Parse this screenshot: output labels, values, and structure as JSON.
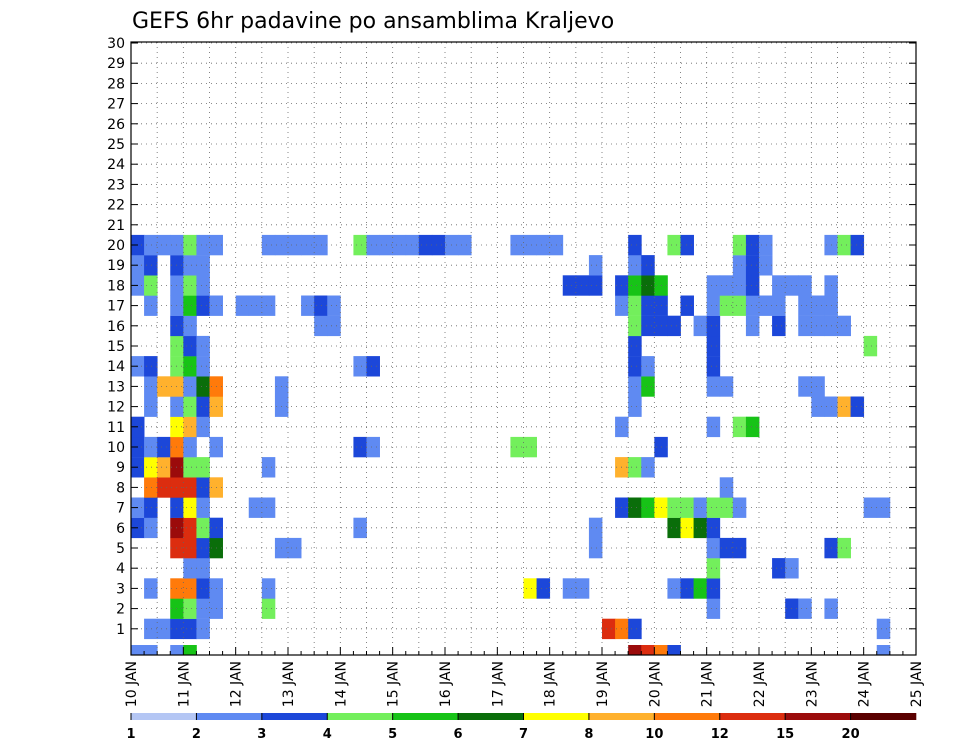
{
  "chart_data": {
    "type": "heatmap",
    "title": "GEFS 6hr padavine po ansamblima Kraljevo",
    "xlabel": "",
    "ylabel": "",
    "x_ticks": [
      "10 JAN",
      "11 JAN",
      "12 JAN",
      "13 JAN",
      "14 JAN",
      "15 JAN",
      "16 JAN",
      "17 JAN",
      "18 JAN",
      "19 JAN",
      "20 JAN",
      "21 JAN",
      "22 JAN",
      "23 JAN",
      "24 JAN",
      "25 JAN"
    ],
    "y_ticks": [
      "1",
      "2",
      "3",
      "4",
      "5",
      "6",
      "7",
      "8",
      "9",
      "10",
      "11",
      "12",
      "13",
      "14",
      "15",
      "16",
      "17",
      "18",
      "19",
      "20",
      "21",
      "22",
      "23",
      "24",
      "25",
      "26",
      "27",
      "28",
      "29",
      "30"
    ],
    "x_range": [
      0,
      60
    ],
    "y_range": [
      0,
      30
    ],
    "x_unit": "6-hour steps from 10 JAN 00Z",
    "grid": true,
    "colorbar": {
      "labels": [
        "1",
        "2",
        "3",
        "4",
        "5",
        "6",
        "7",
        "8",
        "10",
        "12",
        "15",
        "20"
      ],
      "colors": [
        "#b4c6f4",
        "#5f8af2",
        "#1c47d9",
        "#73ef5c",
        "#17c317",
        "#0a6e0a",
        "#ffff00",
        "#ffb12d",
        "#ff7a0a",
        "#dc2d0f",
        "#9b0b0b",
        "#5a0000"
      ]
    },
    "cells": [
      {
        "m": 0,
        "s": 1,
        "c": 1
      },
      {
        "m": 0,
        "s": 2,
        "c": 1
      },
      {
        "m": 0,
        "s": 3,
        "c": 2
      },
      {
        "m": 0,
        "s": 4,
        "c": 2
      },
      {
        "m": 0,
        "s": 5,
        "c": 1
      },
      {
        "m": 0,
        "s": 36,
        "c": 9
      },
      {
        "m": 0,
        "s": 37,
        "c": 8
      },
      {
        "m": 0,
        "s": 38,
        "c": 2
      },
      {
        "m": 0,
        "s": 57,
        "c": 1
      },
      {
        "m": 1,
        "s": 3,
        "c": 4
      },
      {
        "m": 1,
        "s": 4,
        "c": 3
      },
      {
        "m": 1,
        "s": 5,
        "c": 1
      },
      {
        "m": 1,
        "s": 6,
        "c": 1
      },
      {
        "m": 1,
        "s": 10,
        "c": 3
      },
      {
        "m": 1,
        "s": 44,
        "c": 1
      },
      {
        "m": 1,
        "s": 50,
        "c": 2
      },
      {
        "m": 1,
        "s": 51,
        "c": 1
      },
      {
        "m": 1,
        "s": 53,
        "c": 1
      },
      {
        "m": 2,
        "s": 1,
        "c": 1
      },
      {
        "m": 2,
        "s": 3,
        "c": 8
      },
      {
        "m": 2,
        "s": 4,
        "c": 8
      },
      {
        "m": 2,
        "s": 5,
        "c": 2
      },
      {
        "m": 2,
        "s": 6,
        "c": 1
      },
      {
        "m": 2,
        "s": 10,
        "c": 1
      },
      {
        "m": 2,
        "s": 30,
        "c": 6
      },
      {
        "m": 2,
        "s": 31,
        "c": 2
      },
      {
        "m": 2,
        "s": 33,
        "c": 1
      },
      {
        "m": 2,
        "s": 34,
        "c": 1
      },
      {
        "m": 2,
        "s": 41,
        "c": 1
      },
      {
        "m": 2,
        "s": 42,
        "c": 2
      },
      {
        "m": 2,
        "s": 43,
        "c": 4
      },
      {
        "m": 2,
        "s": 44,
        "c": 2
      },
      {
        "m": 3,
        "s": 4,
        "c": 1
      },
      {
        "m": 3,
        "s": 5,
        "c": 1
      },
      {
        "m": 3,
        "s": 44,
        "c": 3
      },
      {
        "m": 3,
        "s": 49,
        "c": 2
      },
      {
        "m": 3,
        "s": 50,
        "c": 1
      },
      {
        "m": 4,
        "s": 3,
        "c": 9
      },
      {
        "m": 4,
        "s": 4,
        "c": 9
      },
      {
        "m": 4,
        "s": 5,
        "c": 2
      },
      {
        "m": 4,
        "s": 6,
        "c": 5
      },
      {
        "m": 4,
        "s": 11,
        "c": 1
      },
      {
        "m": 4,
        "s": 12,
        "c": 1
      },
      {
        "m": 4,
        "s": 35,
        "c": 1
      },
      {
        "m": 4,
        "s": 44,
        "c": 1
      },
      {
        "m": 4,
        "s": 45,
        "c": 2
      },
      {
        "m": 4,
        "s": 46,
        "c": 2
      },
      {
        "m": 4,
        "s": 53,
        "c": 2
      },
      {
        "m": 4,
        "s": 54,
        "c": 3
      },
      {
        "m": 5,
        "s": 0,
        "c": 2
      },
      {
        "m": 5,
        "s": 1,
        "c": 1
      },
      {
        "m": 5,
        "s": 3,
        "c": 10
      },
      {
        "m": 5,
        "s": 4,
        "c": 9
      },
      {
        "m": 5,
        "s": 5,
        "c": 3
      },
      {
        "m": 5,
        "s": 6,
        "c": 2
      },
      {
        "m": 5,
        "s": 17,
        "c": 1
      },
      {
        "m": 5,
        "s": 35,
        "c": 1
      },
      {
        "m": 5,
        "s": 41,
        "c": 5
      },
      {
        "m": 5,
        "s": 42,
        "c": 6
      },
      {
        "m": 5,
        "s": 43,
        "c": 5
      },
      {
        "m": 5,
        "s": 44,
        "c": 2
      },
      {
        "m": 6,
        "s": 0,
        "c": 1
      },
      {
        "m": 6,
        "s": 1,
        "c": 2
      },
      {
        "m": 6,
        "s": 3,
        "c": 2
      },
      {
        "m": 6,
        "s": 4,
        "c": 6
      },
      {
        "m": 6,
        "s": 5,
        "c": 1
      },
      {
        "m": 6,
        "s": 9,
        "c": 1
      },
      {
        "m": 6,
        "s": 10,
        "c": 1
      },
      {
        "m": 6,
        "s": 37,
        "c": 2
      },
      {
        "m": 6,
        "s": 38,
        "c": 5
      },
      {
        "m": 6,
        "s": 39,
        "c": 4
      },
      {
        "m": 6,
        "s": 40,
        "c": 6
      },
      {
        "m": 6,
        "s": 41,
        "c": 3
      },
      {
        "m": 6,
        "s": 42,
        "c": 3
      },
      {
        "m": 6,
        "s": 43,
        "c": 1
      },
      {
        "m": 6,
        "s": 44,
        "c": 3
      },
      {
        "m": 6,
        "s": 45,
        "c": 3
      },
      {
        "m": 6,
        "s": 46,
        "c": 1
      },
      {
        "m": 6,
        "s": 56,
        "c": 1
      },
      {
        "m": 6,
        "s": 57,
        "c": 1
      },
      {
        "m": 7,
        "s": 1,
        "c": 8
      },
      {
        "m": 7,
        "s": 2,
        "c": 9
      },
      {
        "m": 7,
        "s": 3,
        "c": 9
      },
      {
        "m": 7,
        "s": 4,
        "c": 9
      },
      {
        "m": 7,
        "s": 5,
        "c": 2
      },
      {
        "m": 7,
        "s": 6,
        "c": 7
      },
      {
        "m": 7,
        "s": 45,
        "c": 1
      },
      {
        "m": 8,
        "s": 0,
        "c": 2
      },
      {
        "m": 8,
        "s": 1,
        "c": 6
      },
      {
        "m": 8,
        "s": 2,
        "c": 7
      },
      {
        "m": 8,
        "s": 3,
        "c": 10
      },
      {
        "m": 8,
        "s": 4,
        "c": 3
      },
      {
        "m": 8,
        "s": 5,
        "c": 3
      },
      {
        "m": 8,
        "s": 10,
        "c": 1
      },
      {
        "m": 8,
        "s": 37,
        "c": 7
      },
      {
        "m": 8,
        "s": 38,
        "c": 3
      },
      {
        "m": 8,
        "s": 39,
        "c": 1
      },
      {
        "m": 9,
        "s": 0,
        "c": 2
      },
      {
        "m": 9,
        "s": 1,
        "c": 1
      },
      {
        "m": 9,
        "s": 2,
        "c": 2
      },
      {
        "m": 9,
        "s": 3,
        "c": 8
      },
      {
        "m": 9,
        "s": 4,
        "c": 1
      },
      {
        "m": 9,
        "s": 6,
        "c": 1
      },
      {
        "m": 9,
        "s": 17,
        "c": 2
      },
      {
        "m": 9,
        "s": 18,
        "c": 1
      },
      {
        "m": 9,
        "s": 29,
        "c": 3
      },
      {
        "m": 9,
        "s": 30,
        "c": 3
      },
      {
        "m": 9,
        "s": 40,
        "c": 2
      },
      {
        "m": 10,
        "s": 0,
        "c": 2
      },
      {
        "m": 10,
        "s": 3,
        "c": 6
      },
      {
        "m": 10,
        "s": 4,
        "c": 7
      },
      {
        "m": 10,
        "s": 5,
        "c": 1
      },
      {
        "m": 10,
        "s": 37,
        "c": 1
      },
      {
        "m": 10,
        "s": 44,
        "c": 1
      },
      {
        "m": 10,
        "s": 46,
        "c": 3
      },
      {
        "m": 10,
        "s": 47,
        "c": 4
      },
      {
        "m": 11,
        "s": 1,
        "c": 1
      },
      {
        "m": 11,
        "s": 3,
        "c": 1
      },
      {
        "m": 11,
        "s": 4,
        "c": 3
      },
      {
        "m": 11,
        "s": 5,
        "c": 2
      },
      {
        "m": 11,
        "s": 6,
        "c": 7
      },
      {
        "m": 11,
        "s": 11,
        "c": 1
      },
      {
        "m": 11,
        "s": 38,
        "c": 1
      },
      {
        "m": 11,
        "s": 52,
        "c": 1
      },
      {
        "m": 11,
        "s": 53,
        "c": 1
      },
      {
        "m": 11,
        "s": 54,
        "c": 7
      },
      {
        "m": 11,
        "s": 55,
        "c": 2
      },
      {
        "m": 12,
        "s": 1,
        "c": 1
      },
      {
        "m": 12,
        "s": 2,
        "c": 7
      },
      {
        "m": 12,
        "s": 3,
        "c": 7
      },
      {
        "m": 12,
        "s": 4,
        "c": 1
      },
      {
        "m": 12,
        "s": 5,
        "c": 5
      },
      {
        "m": 12,
        "s": 6,
        "c": 8
      },
      {
        "m": 12,
        "s": 11,
        "c": 1
      },
      {
        "m": 12,
        "s": 38,
        "c": 1
      },
      {
        "m": 12,
        "s": 39,
        "c": 4
      },
      {
        "m": 12,
        "s": 44,
        "c": 1
      },
      {
        "m": 12,
        "s": 45,
        "c": 1
      },
      {
        "m": 12,
        "s": 51,
        "c": 1
      },
      {
        "m": 12,
        "s": 52,
        "c": 1
      },
      {
        "m": 13,
        "s": 0,
        "c": 1
      },
      {
        "m": 13,
        "s": 1,
        "c": 2
      },
      {
        "m": 13,
        "s": 3,
        "c": 3
      },
      {
        "m": 13,
        "s": 4,
        "c": 4
      },
      {
        "m": 13,
        "s": 5,
        "c": 1
      },
      {
        "m": 13,
        "s": 17,
        "c": 1
      },
      {
        "m": 13,
        "s": 18,
        "c": 2
      },
      {
        "m": 13,
        "s": 38,
        "c": 2
      },
      {
        "m": 13,
        "s": 39,
        "c": 1
      },
      {
        "m": 13,
        "s": 44,
        "c": 2
      },
      {
        "m": 14,
        "s": 3,
        "c": 3
      },
      {
        "m": 14,
        "s": 4,
        "c": 2
      },
      {
        "m": 14,
        "s": 5,
        "c": 1
      },
      {
        "m": 14,
        "s": 38,
        "c": 2
      },
      {
        "m": 14,
        "s": 44,
        "c": 2
      },
      {
        "m": 14,
        "s": 56,
        "c": 3
      },
      {
        "m": 15,
        "s": 3,
        "c": 2
      },
      {
        "m": 15,
        "s": 4,
        "c": 1
      },
      {
        "m": 15,
        "s": 14,
        "c": 1
      },
      {
        "m": 15,
        "s": 15,
        "c": 1
      },
      {
        "m": 15,
        "s": 38,
        "c": 3
      },
      {
        "m": 15,
        "s": 39,
        "c": 2
      },
      {
        "m": 15,
        "s": 40,
        "c": 2
      },
      {
        "m": 15,
        "s": 41,
        "c": 2
      },
      {
        "m": 15,
        "s": 43,
        "c": 1
      },
      {
        "m": 15,
        "s": 44,
        "c": 2
      },
      {
        "m": 15,
        "s": 47,
        "c": 1
      },
      {
        "m": 15,
        "s": 49,
        "c": 2
      },
      {
        "m": 15,
        "s": 51,
        "c": 1
      },
      {
        "m": 15,
        "s": 52,
        "c": 1
      },
      {
        "m": 15,
        "s": 53,
        "c": 1
      },
      {
        "m": 15,
        "s": 54,
        "c": 1
      },
      {
        "m": 16,
        "s": 1,
        "c": 1
      },
      {
        "m": 16,
        "s": 3,
        "c": 1
      },
      {
        "m": 16,
        "s": 4,
        "c": 4
      },
      {
        "m": 16,
        "s": 5,
        "c": 2
      },
      {
        "m": 16,
        "s": 6,
        "c": 1
      },
      {
        "m": 16,
        "s": 8,
        "c": 1
      },
      {
        "m": 16,
        "s": 9,
        "c": 1
      },
      {
        "m": 16,
        "s": 10,
        "c": 1
      },
      {
        "m": 16,
        "s": 13,
        "c": 1
      },
      {
        "m": 16,
        "s": 14,
        "c": 2
      },
      {
        "m": 16,
        "s": 15,
        "c": 1
      },
      {
        "m": 16,
        "s": 37,
        "c": 1
      },
      {
        "m": 16,
        "s": 38,
        "c": 3
      },
      {
        "m": 16,
        "s": 39,
        "c": 2
      },
      {
        "m": 16,
        "s": 40,
        "c": 2
      },
      {
        "m": 16,
        "s": 42,
        "c": 2
      },
      {
        "m": 16,
        "s": 44,
        "c": 1
      },
      {
        "m": 16,
        "s": 45,
        "c": 3
      },
      {
        "m": 16,
        "s": 46,
        "c": 3
      },
      {
        "m": 16,
        "s": 47,
        "c": 1
      },
      {
        "m": 16,
        "s": 48,
        "c": 1
      },
      {
        "m": 16,
        "s": 49,
        "c": 1
      },
      {
        "m": 16,
        "s": 51,
        "c": 1
      },
      {
        "m": 16,
        "s": 52,
        "c": 1
      },
      {
        "m": 16,
        "s": 53,
        "c": 1
      },
      {
        "m": 17,
        "s": 0,
        "c": 1
      },
      {
        "m": 17,
        "s": 1,
        "c": 3
      },
      {
        "m": 17,
        "s": 3,
        "c": 1
      },
      {
        "m": 17,
        "s": 4,
        "c": 3
      },
      {
        "m": 17,
        "s": 5,
        "c": 1
      },
      {
        "m": 17,
        "s": 33,
        "c": 2
      },
      {
        "m": 17,
        "s": 34,
        "c": 2
      },
      {
        "m": 17,
        "s": 35,
        "c": 2
      },
      {
        "m": 17,
        "s": 37,
        "c": 2
      },
      {
        "m": 17,
        "s": 38,
        "c": 4
      },
      {
        "m": 17,
        "s": 39,
        "c": 5
      },
      {
        "m": 17,
        "s": 40,
        "c": 4
      },
      {
        "m": 17,
        "s": 44,
        "c": 1
      },
      {
        "m": 17,
        "s": 45,
        "c": 1
      },
      {
        "m": 17,
        "s": 46,
        "c": 1
      },
      {
        "m": 17,
        "s": 47,
        "c": 2
      },
      {
        "m": 17,
        "s": 49,
        "c": 1
      },
      {
        "m": 17,
        "s": 50,
        "c": 1
      },
      {
        "m": 17,
        "s": 51,
        "c": 1
      },
      {
        "m": 17,
        "s": 53,
        "c": 1
      },
      {
        "m": 18,
        "s": 0,
        "c": 1
      },
      {
        "m": 18,
        "s": 1,
        "c": 2
      },
      {
        "m": 18,
        "s": 3,
        "c": 2
      },
      {
        "m": 18,
        "s": 4,
        "c": 1
      },
      {
        "m": 18,
        "s": 5,
        "c": 1
      },
      {
        "m": 18,
        "s": 35,
        "c": 1
      },
      {
        "m": 18,
        "s": 38,
        "c": 1
      },
      {
        "m": 18,
        "s": 39,
        "c": 2
      },
      {
        "m": 18,
        "s": 46,
        "c": 1
      },
      {
        "m": 18,
        "s": 47,
        "c": 2
      },
      {
        "m": 18,
        "s": 48,
        "c": 1
      },
      {
        "m": 19,
        "s": 0,
        "c": 2
      },
      {
        "m": 19,
        "s": 1,
        "c": 1
      },
      {
        "m": 19,
        "s": 2,
        "c": 1
      },
      {
        "m": 19,
        "s": 3,
        "c": 1
      },
      {
        "m": 19,
        "s": 4,
        "c": 3
      },
      {
        "m": 19,
        "s": 5,
        "c": 1
      },
      {
        "m": 19,
        "s": 6,
        "c": 1
      },
      {
        "m": 19,
        "s": 10,
        "c": 1
      },
      {
        "m": 19,
        "s": 11,
        "c": 1
      },
      {
        "m": 19,
        "s": 12,
        "c": 1
      },
      {
        "m": 19,
        "s": 13,
        "c": 1
      },
      {
        "m": 19,
        "s": 14,
        "c": 1
      },
      {
        "m": 19,
        "s": 17,
        "c": 3
      },
      {
        "m": 19,
        "s": 18,
        "c": 1
      },
      {
        "m": 19,
        "s": 19,
        "c": 1
      },
      {
        "m": 19,
        "s": 20,
        "c": 1
      },
      {
        "m": 19,
        "s": 21,
        "c": 1
      },
      {
        "m": 19,
        "s": 22,
        "c": 2
      },
      {
        "m": 19,
        "s": 23,
        "c": 2
      },
      {
        "m": 19,
        "s": 24,
        "c": 1
      },
      {
        "m": 19,
        "s": 25,
        "c": 1
      },
      {
        "m": 19,
        "s": 29,
        "c": 1
      },
      {
        "m": 19,
        "s": 30,
        "c": 1
      },
      {
        "m": 19,
        "s": 31,
        "c": 1
      },
      {
        "m": 19,
        "s": 32,
        "c": 1
      },
      {
        "m": 19,
        "s": 38,
        "c": 2
      },
      {
        "m": 19,
        "s": 41,
        "c": 3
      },
      {
        "m": 19,
        "s": 42,
        "c": 2
      },
      {
        "m": 19,
        "s": 46,
        "c": 3
      },
      {
        "m": 19,
        "s": 47,
        "c": 2
      },
      {
        "m": 19,
        "s": 48,
        "c": 1
      },
      {
        "m": 19,
        "s": 53,
        "c": 1
      },
      {
        "m": 19,
        "s": 54,
        "c": 3
      },
      {
        "m": 19,
        "s": 55,
        "c": 2
      }
    ],
    "bottom_row": [
      {
        "s": 0,
        "c": 1
      },
      {
        "s": 1,
        "c": 1
      },
      {
        "s": 3,
        "c": 1
      },
      {
        "s": 4,
        "c": 4
      },
      {
        "s": 38,
        "c": 10
      },
      {
        "s": 39,
        "c": 9
      },
      {
        "s": 40,
        "c": 8
      },
      {
        "s": 41,
        "c": 2
      },
      {
        "s": 57,
        "c": 1
      }
    ]
  }
}
